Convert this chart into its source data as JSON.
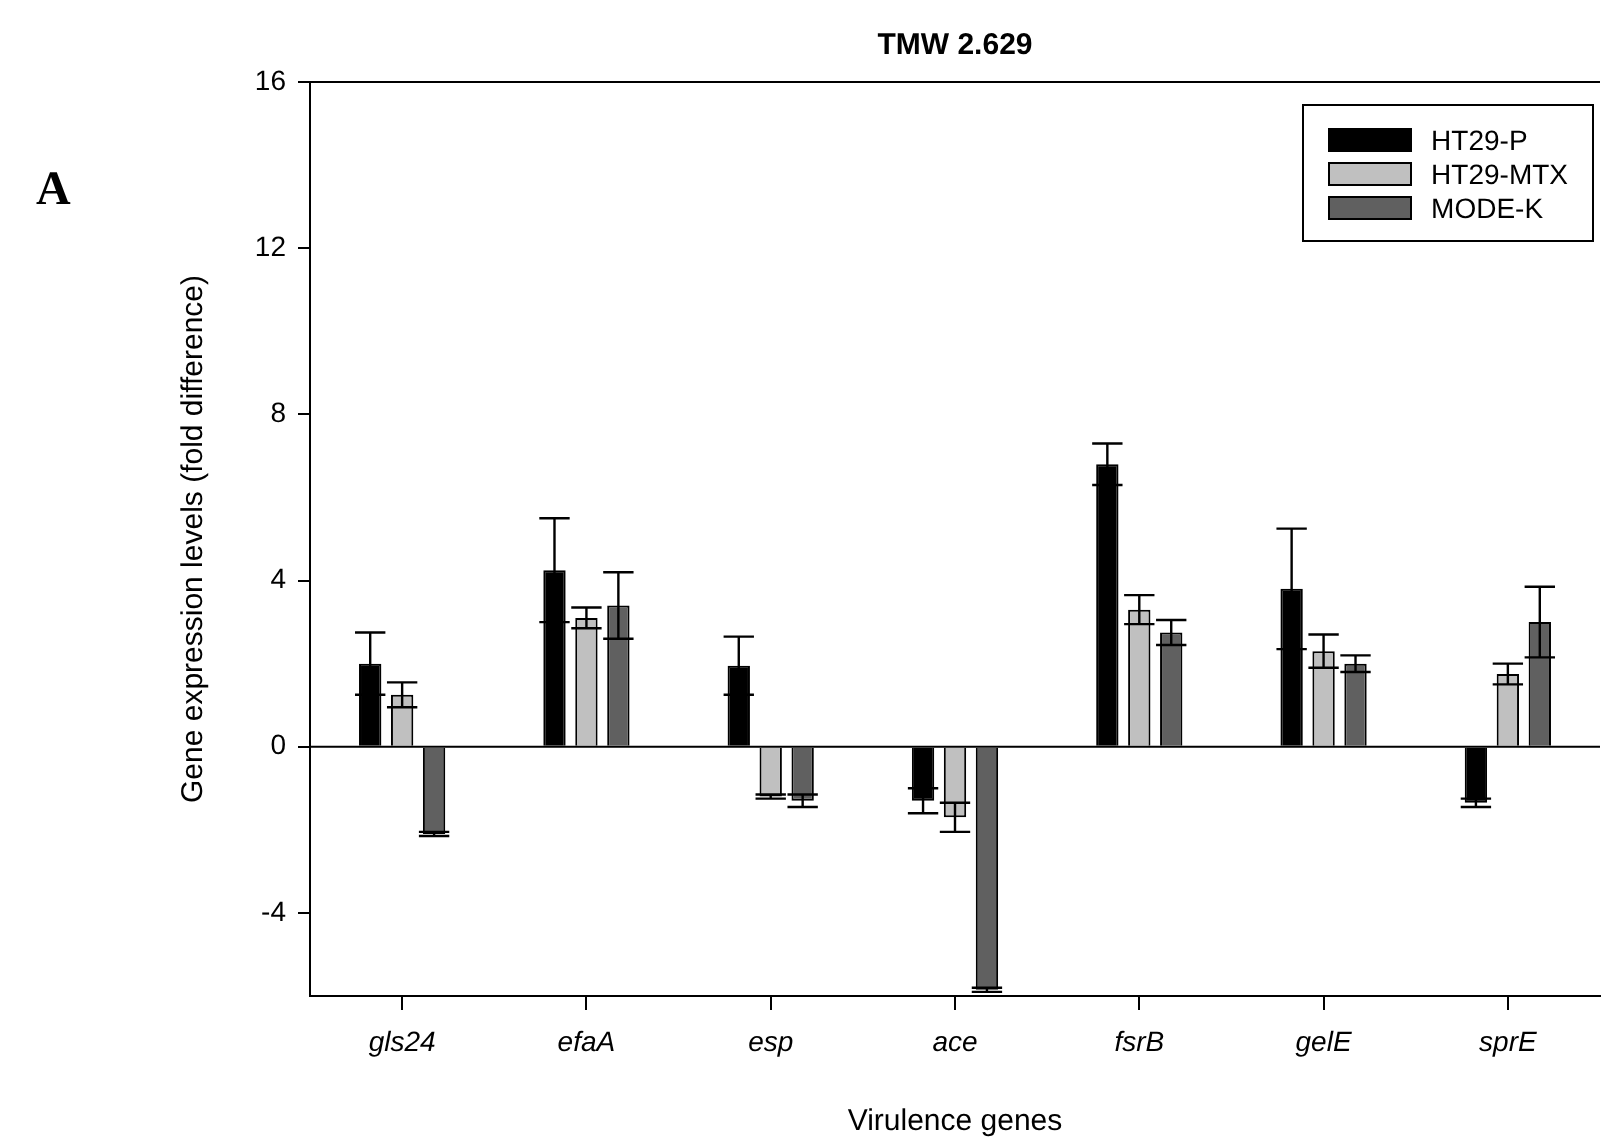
{
  "chart_data": {
    "type": "bar",
    "title": "TMW 2.629",
    "xlabel": "Virulence genes",
    "ylabel": "Gene expression levels (fold difference)",
    "annotations": [
      "A"
    ],
    "categories": [
      "gls24",
      "efaA",
      "esp",
      "ace",
      "fsrB",
      "gelE",
      "sprE"
    ],
    "series": [
      {
        "name": "HT29-P",
        "color": "#000000",
        "values": [
          2.0,
          4.25,
          1.95,
          -1.3,
          6.8,
          3.8,
          -1.35
        ],
        "errors": [
          0.75,
          1.25,
          0.7,
          0.3,
          0.5,
          1.45,
          0.1
        ]
      },
      {
        "name": "HT29-MTX",
        "color": "#c0c0c0",
        "values": [
          1.25,
          3.1,
          -1.2,
          -1.7,
          3.3,
          2.3,
          1.75
        ],
        "errors": [
          0.3,
          0.25,
          0.05,
          0.35,
          0.35,
          0.4,
          0.25
        ]
      },
      {
        "name": "MODE-K",
        "color": "#606060",
        "values": [
          -2.1,
          3.4,
          -1.3,
          -5.85,
          2.75,
          2.0,
          3.0
        ],
        "errors": [
          0.05,
          0.8,
          0.15,
          0.05,
          0.3,
          0.2,
          0.85
        ]
      }
    ],
    "ylim": [
      -6,
      16
    ],
    "yticks": [
      -4,
      0,
      4,
      8,
      12,
      16
    ],
    "legend": "top right"
  }
}
